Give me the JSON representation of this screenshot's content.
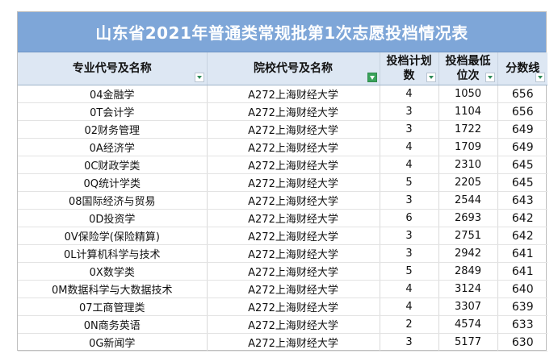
{
  "title": "山东省2021年普通类常规批第1次志愿投档情况表",
  "headers": {
    "major": "专业代号及名称",
    "school": "院校代号及名称",
    "plan_line1": "投档计划",
    "plan_line2": "数",
    "rank_line1": "投档最低",
    "rank_line2": "位次",
    "score": "分数线"
  },
  "rows": [
    {
      "major": "04金融学",
      "school": "A272上海财经大学",
      "plan": "4",
      "rank": "1050",
      "score": "656"
    },
    {
      "major": "0T会计学",
      "school": "A272上海财经大学",
      "plan": "3",
      "rank": "1104",
      "score": "656"
    },
    {
      "major": "02财务管理",
      "school": "A272上海财经大学",
      "plan": "3",
      "rank": "1722",
      "score": "649"
    },
    {
      "major": "0A经济学",
      "school": "A272上海财经大学",
      "plan": "4",
      "rank": "1709",
      "score": "649"
    },
    {
      "major": "0C财政学类",
      "school": "A272上海财经大学",
      "plan": "4",
      "rank": "2310",
      "score": "645"
    },
    {
      "major": "0Q统计学类",
      "school": "A272上海财经大学",
      "plan": "5",
      "rank": "2205",
      "score": "645"
    },
    {
      "major": "08国际经济与贸易",
      "school": "A272上海财经大学",
      "plan": "3",
      "rank": "2544",
      "score": "643"
    },
    {
      "major": "0D投资学",
      "school": "A272上海财经大学",
      "plan": "6",
      "rank": "2693",
      "score": "642"
    },
    {
      "major": "0V保险学(保险精算)",
      "school": "A272上海财经大学",
      "plan": "3",
      "rank": "2751",
      "score": "642"
    },
    {
      "major": "0L计算机科学与技术",
      "school": "A272上海财经大学",
      "plan": "3",
      "rank": "2942",
      "score": "641"
    },
    {
      "major": "0X数学类",
      "school": "A272上海财经大学",
      "plan": "5",
      "rank": "2849",
      "score": "641"
    },
    {
      "major": "0M数据科学与大数据技术",
      "school": "A272上海财经大学",
      "plan": "4",
      "rank": "3124",
      "score": "640"
    },
    {
      "major": "07工商管理类",
      "school": "A272上海财经大学",
      "plan": "4",
      "rank": "3307",
      "score": "639"
    },
    {
      "major": "0N商务英语",
      "school": "A272上海财经大学",
      "plan": "2",
      "rank": "4574",
      "score": "633"
    },
    {
      "major": "0G新闻学",
      "school": "A272上海财经大学",
      "plan": "3",
      "rank": "5177",
      "score": "630"
    }
  ],
  "icons": {
    "filter": "dropdown-filter-icon",
    "filter_active": "active-filter-icon"
  },
  "colors": {
    "title_bg": "#7ea6d8",
    "header_bg": "#dde7f3",
    "filter_active": "#3aa35b"
  }
}
